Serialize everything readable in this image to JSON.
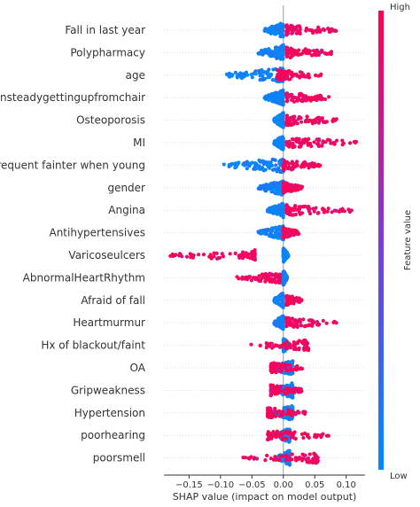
{
  "chart_data": {
    "type": "scatter",
    "subtype": "shap-beeswarm",
    "xlabel": "SHAP value (impact on model output)",
    "xlim": [
      -0.19,
      0.13
    ],
    "xticks": [
      -0.15,
      -0.1,
      -0.05,
      0.0,
      0.05,
      0.1
    ],
    "xtick_labels": [
      "−0.15",
      "−0.10",
      "−0.05",
      "0.00",
      "0.05",
      "0.10"
    ],
    "colorbar": {
      "label": "Feature value",
      "high_label": "High",
      "low_label": "Low",
      "low_color": "#008bfb",
      "high_color": "#ff0052"
    },
    "features": [
      {
        "name": "Fall in last year",
        "low_range": [
          -0.03,
          0.0
        ],
        "high_range": [
          0.005,
          0.085
        ]
      },
      {
        "name": "Polypharmacy",
        "low_range": [
          -0.04,
          0.0
        ],
        "high_range": [
          0.005,
          0.08
        ]
      },
      {
        "name": "age",
        "low_range": [
          -0.095,
          0.0
        ],
        "high_range": [
          -0.01,
          0.06
        ]
      },
      {
        "name": "unsteadygettingupfromchair",
        "low_range": [
          -0.03,
          0.0
        ],
        "high_range": [
          0.005,
          0.075
        ]
      },
      {
        "name": "Osteoporosis",
        "low_range": [
          -0.015,
          0.0
        ],
        "high_range": [
          0.005,
          0.085
        ]
      },
      {
        "name": "MI",
        "low_range": [
          -0.015,
          0.0
        ],
        "high_range": [
          0.005,
          0.12
        ]
      },
      {
        "name": "Frequent fainter when young",
        "low_range": [
          -0.095,
          0.0
        ],
        "high_range": [
          0.0,
          0.06
        ]
      },
      {
        "name": "gender",
        "low_range": [
          -0.04,
          0.0
        ],
        "high_range": [
          0.0,
          0.03
        ]
      },
      {
        "name": "Angina",
        "low_range": [
          -0.025,
          0.0
        ],
        "high_range": [
          0.005,
          0.115
        ]
      },
      {
        "name": "Antihypertensives",
        "low_range": [
          -0.04,
          0.0
        ],
        "high_range": [
          0.0,
          0.025
        ]
      },
      {
        "name": "Varicoseulcers",
        "low_range": [
          0.0,
          0.008
        ],
        "high_range": [
          -0.18,
          -0.045
        ]
      },
      {
        "name": "AbnormalHeartRhythm",
        "low_range": [
          0.0,
          0.006
        ],
        "high_range": [
          -0.075,
          -0.005
        ]
      },
      {
        "name": "Afraid of fall",
        "low_range": [
          -0.015,
          0.0
        ],
        "high_range": [
          0.005,
          0.03
        ]
      },
      {
        "name": "Heartmurmur",
        "low_range": [
          -0.015,
          0.0
        ],
        "high_range": [
          0.005,
          0.085
        ]
      },
      {
        "name": "Hx of blackout/faint",
        "low_range": [
          0.0,
          0.01
        ],
        "high_range": [
          -0.055,
          0.04
        ]
      },
      {
        "name": "OA",
        "low_range": [
          -0.02,
          0.015
        ],
        "high_range": [
          -0.02,
          0.03
        ]
      },
      {
        "name": "Gripweakness",
        "low_range": [
          -0.02,
          0.015
        ],
        "high_range": [
          -0.02,
          0.03
        ]
      },
      {
        "name": "Hypertension",
        "low_range": [
          -0.02,
          0.015
        ],
        "high_range": [
          -0.025,
          0.035
        ]
      },
      {
        "name": "poorhearing",
        "low_range": [
          -0.01,
          0.01
        ],
        "high_range": [
          -0.025,
          0.075
        ]
      },
      {
        "name": "poorsmell",
        "low_range": [
          -0.01,
          0.01
        ],
        "high_range": [
          -0.065,
          0.055
        ]
      }
    ]
  }
}
